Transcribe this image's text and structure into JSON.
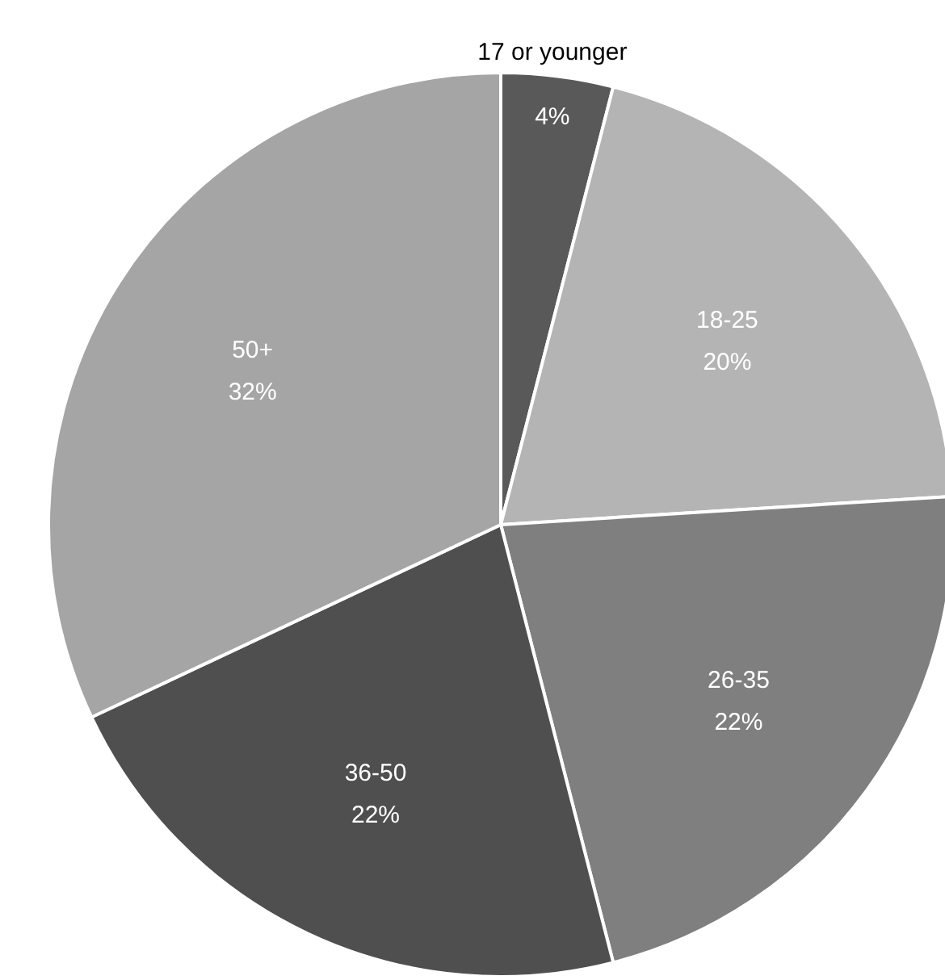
{
  "chart_data": {
    "type": "pie",
    "categories": [
      "17 or younger",
      "18-25",
      "26-35",
      "36-50",
      "50+"
    ],
    "values": [
      4,
      20,
      22,
      22,
      32
    ],
    "value_labels": [
      "4%",
      "20%",
      "22%",
      "22%",
      "32%"
    ],
    "colors": [
      "#595959",
      "#b4b4b4",
      "#7f7f7f",
      "#4f4f4f",
      "#a5a5a5"
    ]
  }
}
